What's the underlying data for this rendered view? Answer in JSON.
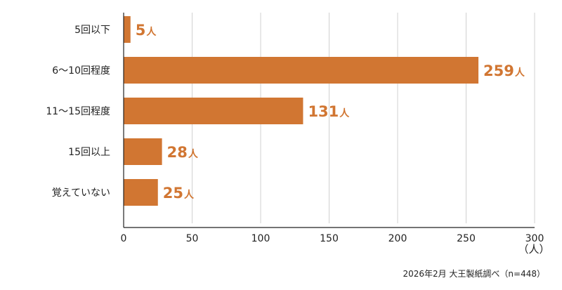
{
  "chart_data": {
    "type": "bar",
    "orientation": "horizontal",
    "categories": [
      "5回以下",
      "6～10回程度",
      "11～15回程度",
      "15回以上",
      "覚えていない"
    ],
    "values": [
      5,
      259,
      131,
      28,
      25
    ],
    "value_suffix": "人",
    "xlim": [
      0,
      300
    ],
    "xticks": [
      0,
      50,
      100,
      150,
      200,
      250,
      300
    ],
    "xunit": "（人）",
    "grid": true,
    "legend": "none",
    "bar_color": "#d17632",
    "label_color": "#d17632"
  },
  "source_note": "2026年2月 大王製紙調べ（n=448）"
}
